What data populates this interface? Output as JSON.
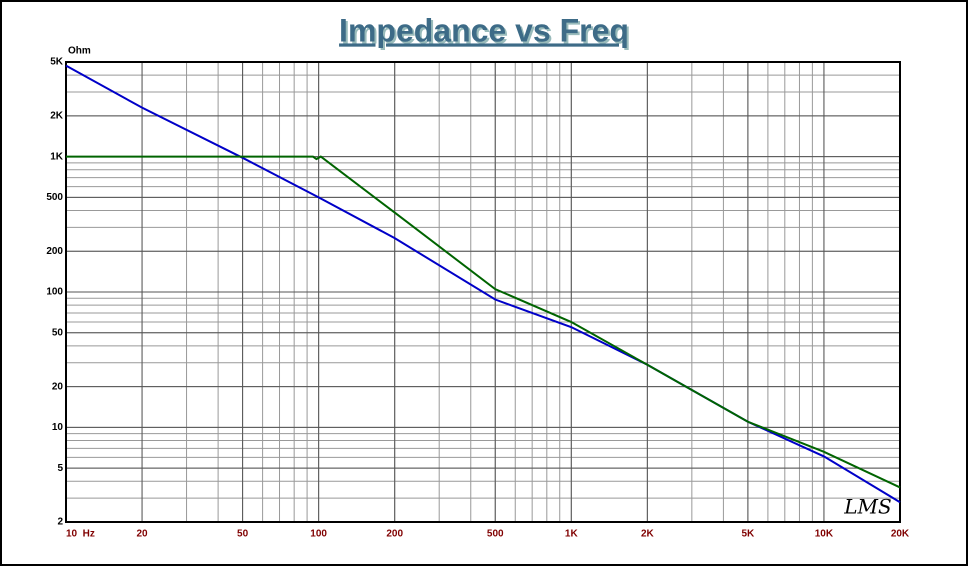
{
  "chart_data": {
    "type": "line",
    "title": "Impedance vs Freq",
    "y_unit": "Ohm",
    "logo": "LMS",
    "log_x": true,
    "log_y": true,
    "grid": true,
    "xlim": [
      10,
      20000
    ],
    "ylim": [
      2,
      5000
    ],
    "xticks": [
      {
        "value": 10,
        "label": "10  Hz"
      },
      20,
      50,
      100,
      200,
      500,
      {
        "value": 1000,
        "label": "1K"
      },
      {
        "value": 2000,
        "label": "2K"
      },
      {
        "value": 5000,
        "label": "5K"
      },
      {
        "value": 10000,
        "label": "10K"
      },
      {
        "value": 20000,
        "label": "20K"
      }
    ],
    "yticks": [
      2,
      5,
      10,
      20,
      50,
      100,
      200,
      500,
      {
        "value": 1000,
        "label": "1K"
      },
      {
        "value": 2000,
        "label": "2K"
      },
      {
        "value": 5000,
        "label": "5K"
      }
    ],
    "series": [
      {
        "color": "#0000c8",
        "x": [
          10,
          20,
          50,
          100,
          200,
          500,
          1000,
          2000,
          5000,
          10000,
          20000
        ],
        "values": [
          4700,
          2300,
          980,
          500,
          250,
          88,
          55,
          29,
          11,
          6.1,
          2.8
        ]
      },
      {
        "color": "#006400",
        "x": [
          10,
          50,
          95,
          98,
          100,
          102,
          200,
          500,
          1000,
          2000,
          5000,
          10000,
          20000
        ],
        "values": [
          1000,
          1000,
          1000,
          960,
          980,
          1000,
          386,
          105,
          60,
          29,
          11,
          6.6,
          3.6
        ]
      }
    ]
  }
}
